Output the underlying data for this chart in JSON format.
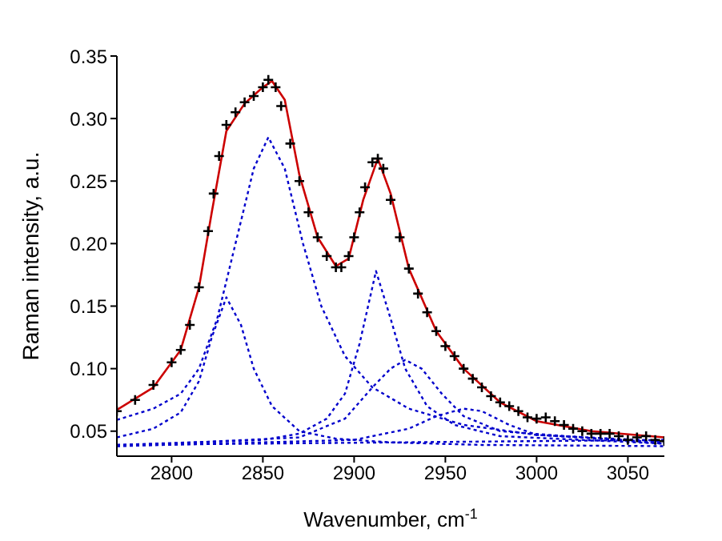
{
  "chart_data": {
    "type": "line",
    "xlabel": "Wavenumber, cm$^{-1}$",
    "ylabel": "Raman intensity, a.u.",
    "xlim": [
      2770,
      3070
    ],
    "ylim": [
      0.03,
      0.35
    ],
    "xticks": [
      2800,
      2850,
      2900,
      2950,
      3000,
      3050
    ],
    "yticks": [
      0.05,
      {
        "value": 0.1,
        "label": "0.10"
      },
      0.15,
      {
        "value": 0.2,
        "label": "0.20"
      },
      0.25,
      {
        "value": 0.3,
        "label": "0.30"
      },
      0.35
    ],
    "grid": false,
    "series": [
      {
        "type": "scatter",
        "marker": "cross",
        "color": "#000000",
        "x": [
          2770,
          2780,
          2790,
          2800,
          2805,
          2810,
          2815,
          2820,
          2823,
          2826,
          2830,
          2835,
          2840,
          2845,
          2850,
          2853,
          2857,
          2860,
          2865,
          2870,
          2875,
          2880,
          2885,
          2890,
          2893,
          2897,
          2900,
          2903,
          2906,
          2910,
          2913,
          2916,
          2920,
          2925,
          2930,
          2935,
          2940,
          2945,
          2950,
          2955,
          2960,
          2965,
          2970,
          2975,
          2980,
          2985,
          2990,
          2995,
          3000,
          3005,
          3010,
          3015,
          3020,
          3025,
          3030,
          3035,
          3040,
          3045,
          3050,
          3055,
          3060,
          3065,
          3070
        ],
        "values": [
          0.066,
          0.075,
          0.087,
          0.105,
          0.115,
          0.135,
          0.165,
          0.21,
          0.24,
          0.27,
          0.295,
          0.305,
          0.313,
          0.318,
          0.325,
          0.331,
          0.325,
          0.31,
          0.28,
          0.25,
          0.225,
          0.205,
          0.19,
          0.181,
          0.181,
          0.19,
          0.205,
          0.225,
          0.245,
          0.265,
          0.268,
          0.26,
          0.235,
          0.205,
          0.18,
          0.16,
          0.145,
          0.13,
          0.118,
          0.11,
          0.1,
          0.092,
          0.085,
          0.078,
          0.073,
          0.07,
          0.066,
          0.061,
          0.06,
          0.061,
          0.058,
          0.055,
          0.052,
          0.05,
          0.048,
          0.048,
          0.048,
          0.046,
          0.043,
          0.045,
          0.046,
          0.043,
          0.042
        ]
      },
      {
        "line_style": "solid",
        "color": "#cc0000",
        "x": [
          2770,
          2790,
          2805,
          2815,
          2822,
          2830,
          2840,
          2850,
          2855,
          2862,
          2870,
          2880,
          2890,
          2897,
          2905,
          2913,
          2920,
          2930,
          2945,
          2960,
          2980,
          3000,
          3030,
          3070
        ],
        "values": [
          0.067,
          0.085,
          0.115,
          0.165,
          0.225,
          0.29,
          0.312,
          0.325,
          0.33,
          0.315,
          0.255,
          0.205,
          0.182,
          0.188,
          0.235,
          0.268,
          0.24,
          0.18,
          0.13,
          0.1,
          0.073,
          0.058,
          0.05,
          0.045
        ]
      },
      {
        "line_style": "dotted",
        "color": "#0000cc",
        "x": [
          2770,
          2790,
          2805,
          2815,
          2822,
          2830,
          2838,
          2845,
          2855,
          2870,
          2890,
          2920,
          2970,
          3070
        ],
        "values": [
          0.045,
          0.052,
          0.065,
          0.09,
          0.125,
          0.157,
          0.135,
          0.1,
          0.07,
          0.05,
          0.044,
          0.041,
          0.039,
          0.038
        ]
      },
      {
        "line_style": "dotted",
        "color": "#0000cc",
        "x": [
          2770,
          2790,
          2805,
          2815,
          2825,
          2835,
          2845,
          2853,
          2862,
          2872,
          2882,
          2895,
          2910,
          2930,
          2960,
          3000,
          3070
        ],
        "values": [
          0.059,
          0.068,
          0.08,
          0.1,
          0.14,
          0.2,
          0.26,
          0.285,
          0.26,
          0.2,
          0.15,
          0.11,
          0.085,
          0.068,
          0.055,
          0.047,
          0.042
        ]
      },
      {
        "line_style": "dotted",
        "color": "#0000cc",
        "x": [
          2770,
          2850,
          2870,
          2885,
          2895,
          2903,
          2912,
          2920,
          2928,
          2940,
          2955,
          2980,
          3070
        ],
        "values": [
          0.039,
          0.043,
          0.048,
          0.06,
          0.08,
          0.12,
          0.178,
          0.14,
          0.1,
          0.07,
          0.055,
          0.046,
          0.04
        ]
      },
      {
        "line_style": "dotted",
        "color": "#0000cc",
        "x": [
          2770,
          2870,
          2895,
          2910,
          2920,
          2928,
          2937,
          2948,
          2960,
          2980,
          3070
        ],
        "values": [
          0.038,
          0.045,
          0.06,
          0.085,
          0.1,
          0.107,
          0.1,
          0.08,
          0.062,
          0.05,
          0.04
        ]
      },
      {
        "line_style": "dotted",
        "color": "#0000cc",
        "x": [
          2770,
          2900,
          2930,
          2945,
          2960,
          2970,
          2985,
          3000,
          3070
        ],
        "values": [
          0.038,
          0.043,
          0.052,
          0.062,
          0.068,
          0.066,
          0.055,
          0.047,
          0.041
        ]
      },
      {
        "line_style": "dotted",
        "color": "#0000cc",
        "x": [
          2770,
          3070
        ],
        "values": [
          0.039,
          0.043
        ]
      }
    ]
  }
}
